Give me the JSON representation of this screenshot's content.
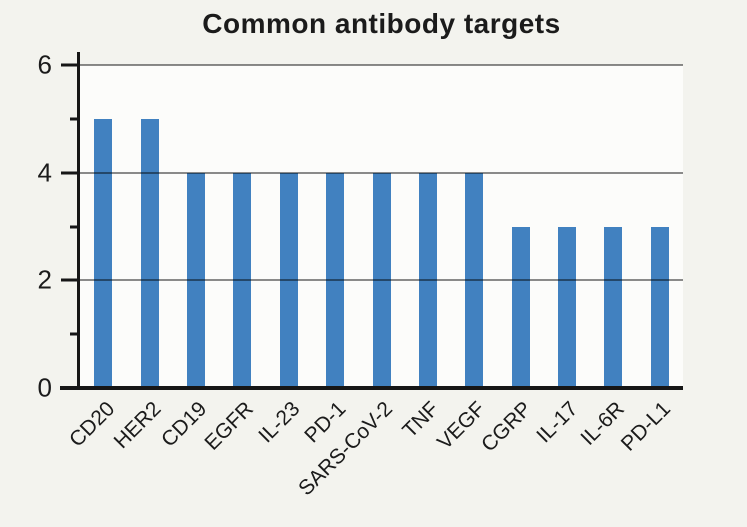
{
  "chart_data": {
    "type": "bar",
    "title": "Common antibody targets",
    "categories": [
      "CD20",
      "HER2",
      "CD19",
      "EGFR",
      "IL-23",
      "PD-1",
      "SARS-CoV-2",
      "TNF",
      "VEGF",
      "CGRP",
      "IL-17",
      "IL-6R",
      "PD-L1"
    ],
    "values": [
      5,
      5,
      4,
      4,
      4,
      4,
      4,
      4,
      4,
      3,
      3,
      3,
      3
    ],
    "xlabel": "",
    "ylabel": "",
    "ylim": [
      0,
      6
    ],
    "yticks_major": [
      0,
      2,
      4,
      6
    ],
    "yticks_minor": [
      1,
      3,
      5
    ],
    "gridline_values": [
      2,
      4,
      6
    ],
    "grid": "horizontal gridlines drawn over bars",
    "legend": null,
    "x_tick_rotation_deg": 45,
    "bar_color": "#4181c0"
  },
  "colors": {
    "page_background": "#f3f3ee",
    "plot_background": "#fcfcfa",
    "bar": "#4181c0",
    "axis": "#161616",
    "gridline_rgba": "rgba(0,0,0,0.45)",
    "text": "#1b1b1b"
  }
}
